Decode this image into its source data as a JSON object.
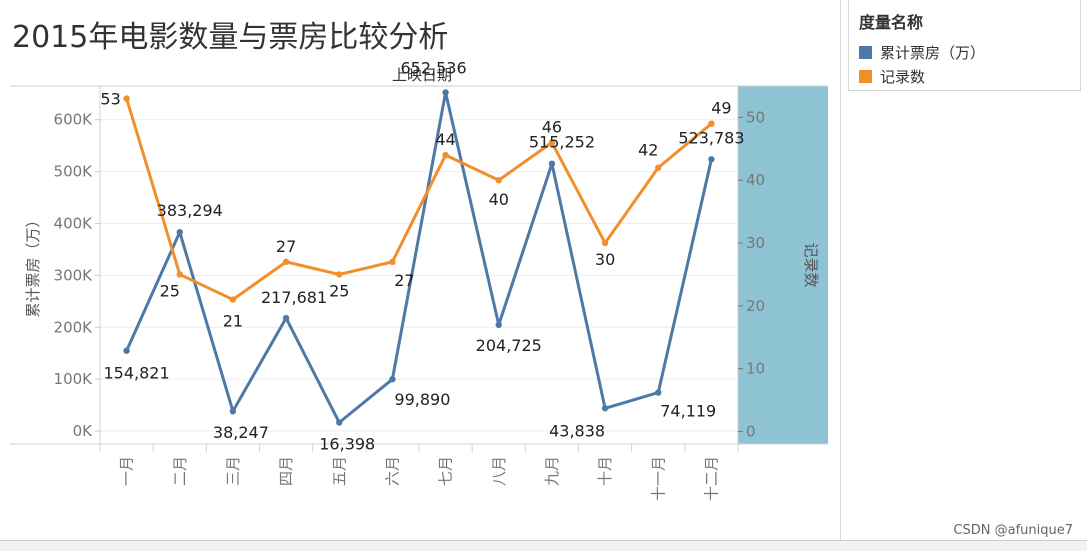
{
  "title": "2015年电影数量与票房比较分析",
  "legend": {
    "title": "度量名称",
    "items": [
      {
        "label": "累计票房（万）",
        "color": "#4e79a7"
      },
      {
        "label": "记录数",
        "color": "#f28e2b"
      }
    ]
  },
  "watermark": "CSDN @afunique7",
  "chart_data": {
    "type": "line",
    "header": "上映日期",
    "categories": [
      "一月",
      "二月",
      "三月",
      "四月",
      "五月",
      "六月",
      "七月",
      "八月",
      "九月",
      "十月",
      "十一月",
      "十二月"
    ],
    "series": [
      {
        "name": "累计票房（万）",
        "axis": "left",
        "color": "#4e79a7",
        "values": [
          154821,
          383294,
          38247,
          217681,
          16398,
          99890,
          652536,
          204725,
          515252,
          43838,
          74119,
          523783
        ],
        "labels": [
          "154,821",
          "383,294",
          "38,247",
          "217,681",
          "16,398",
          "99,890",
          "652,536",
          "204,725",
          "515,252",
          "43,838",
          "",
          "523,783"
        ]
      },
      {
        "name": "记录数",
        "axis": "right",
        "color": "#f28e2b",
        "values": [
          53,
          25,
          21,
          27,
          25,
          27,
          44,
          40,
          46,
          30,
          42,
          49
        ],
        "labels": [
          "53",
          "25",
          "21",
          "27",
          "25",
          "27",
          "44",
          "40",
          "46",
          "30",
          "42",
          "49"
        ]
      }
    ],
    "extra_labels": [
      "74,119"
    ],
    "left_axis": {
      "label": "累计票房（万）",
      "ticks": [
        0,
        100000,
        200000,
        300000,
        400000,
        500000,
        600000
      ],
      "tick_labels": [
        "0K",
        "100K",
        "200K",
        "300K",
        "400K",
        "500K",
        "600K"
      ],
      "range": [
        -25000,
        665000
      ]
    },
    "right_axis": {
      "label": "记录数",
      "ticks": [
        0,
        10,
        20,
        30,
        40,
        50
      ],
      "tick_labels": [
        "0",
        "10",
        "20",
        "30",
        "40",
        "50"
      ],
      "range": [
        -2,
        55
      ]
    },
    "highlight_color": "#8ec3d4",
    "grid": true
  }
}
